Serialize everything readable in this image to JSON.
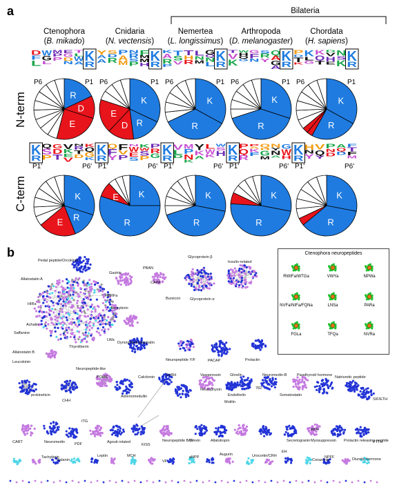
{
  "panel_a": {
    "letter": "a",
    "bilateria_label": "Bilateria",
    "groups": [
      {
        "name": "Ctenophora",
        "species": "B. mikado"
      },
      {
        "name": "Cnidaria",
        "species": "N. vectensis"
      },
      {
        "name": "Nemertea",
        "species": "L. longissimus"
      },
      {
        "name": "Arthropoda",
        "species": "D. melanogaster"
      },
      {
        "name": "Chordata",
        "species": "H. sapiens"
      }
    ],
    "nterm_label": "N-term",
    "cterm_label": "C-term",
    "n_left": "P6",
    "n_right": "P1",
    "c_left": "P1'",
    "c_right": "P6'",
    "colors": {
      "K": "#1f7be0",
      "R": "#1f7be0",
      "D": "#e8141b",
      "E": "#e8141b",
      "other": "#ffffff"
    }
  },
  "chart_data": [
    {
      "type": "pie",
      "title": "Ctenophora N-term",
      "slices": [
        {
          "label": "R",
          "value": 18,
          "color": "#1f7be0"
        },
        {
          "label": "D",
          "value": 12,
          "color": "#e8141b"
        },
        {
          "label": "E",
          "value": 24,
          "color": "#e8141b"
        },
        {
          "label": "",
          "value": 46,
          "color": "#ffffff"
        }
      ]
    },
    {
      "type": "pie",
      "title": "Cnidaria N-term",
      "slices": [
        {
          "label": "K",
          "value": 32,
          "color": "#1f7be0"
        },
        {
          "label": "R",
          "value": 16,
          "color": "#1f7be0"
        },
        {
          "label": "D",
          "value": 14,
          "color": "#e8141b"
        },
        {
          "label": "E",
          "value": 18,
          "color": "#e8141b"
        },
        {
          "label": "",
          "value": 20,
          "color": "#ffffff"
        }
      ]
    },
    {
      "type": "pie",
      "title": "Nemertea N-term",
      "slices": [
        {
          "label": "K",
          "value": 33,
          "color": "#1f7be0"
        },
        {
          "label": "R",
          "value": 35,
          "color": "#1f7be0"
        },
        {
          "label": "",
          "value": 32,
          "color": "#ffffff"
        }
      ]
    },
    {
      "type": "pie",
      "title": "Arthropoda N-term",
      "slices": [
        {
          "label": "K",
          "value": 30,
          "color": "#1f7be0"
        },
        {
          "label": "R",
          "value": 40,
          "color": "#1f7be0"
        },
        {
          "label": "",
          "value": 30,
          "color": "#ffffff"
        }
      ]
    },
    {
      "type": "pie",
      "title": "Chordata N-term",
      "slices": [
        {
          "label": "K",
          "value": 33,
          "color": "#1f7be0"
        },
        {
          "label": "R",
          "value": 25,
          "color": "#1f7be0"
        },
        {
          "label": "D",
          "value": 3,
          "color": "#e8141b"
        },
        {
          "label": "E",
          "value": 3,
          "color": "#e8141b"
        },
        {
          "label": "",
          "value": 36,
          "color": "#ffffff"
        }
      ]
    },
    {
      "type": "pie",
      "title": "Ctenophora C-term",
      "slices": [
        {
          "label": "K",
          "value": 30,
          "color": "#1f7be0"
        },
        {
          "label": "R",
          "value": 14,
          "color": "#1f7be0"
        },
        {
          "label": "E",
          "value": 20,
          "color": "#e8141b"
        },
        {
          "label": "",
          "value": 36,
          "color": "#ffffff"
        }
      ]
    },
    {
      "type": "pie",
      "title": "Cnidaria C-term",
      "slices": [
        {
          "label": "K",
          "value": 25,
          "color": "#1f7be0"
        },
        {
          "label": "R",
          "value": 55,
          "color": "#1f7be0"
        },
        {
          "label": "E",
          "value": 8,
          "color": "#e8141b"
        },
        {
          "label": "",
          "value": 12,
          "color": "#ffffff"
        }
      ]
    },
    {
      "type": "pie",
      "title": "Nemertea C-term",
      "slices": [
        {
          "label": "K",
          "value": 28,
          "color": "#1f7be0"
        },
        {
          "label": "R",
          "value": 42,
          "color": "#1f7be0"
        },
        {
          "label": "",
          "value": 30,
          "color": "#ffffff"
        }
      ]
    },
    {
      "type": "pie",
      "title": "Arthropoda C-term",
      "slices": [
        {
          "label": "K",
          "value": 28,
          "color": "#1f7be0"
        },
        {
          "label": "R",
          "value": 48,
          "color": "#1f7be0"
        },
        {
          "label": "",
          "value": 6,
          "color": "#e8141b"
        },
        {
          "label": "",
          "value": 18,
          "color": "#ffffff"
        }
      ]
    },
    {
      "type": "pie",
      "title": "Chordata C-term",
      "slices": [
        {
          "label": "K",
          "value": 28,
          "color": "#1f7be0"
        },
        {
          "label": "R",
          "value": 36,
          "color": "#1f7be0"
        },
        {
          "label": "",
          "value": 4,
          "color": "#e8141b"
        },
        {
          "label": "",
          "value": 32,
          "color": "#ffffff"
        }
      ]
    }
  ],
  "panel_b": {
    "letter": "b",
    "legend_title": "Ctenophora neuropeptides",
    "legend_items": [
      "RWIFa/WTGa",
      "VWYa",
      "NPWa",
      "NVFa/NIFa/FQNa",
      "LNSa",
      "PARa",
      "FGLa",
      "TFQa",
      "NVRa"
    ],
    "cluster_labels": [
      "Pedal peptide/Orcokinin",
      "Gastrin",
      "PBAN",
      "Allatostatin A",
      "FMRFa",
      "CAPA",
      "HIRa",
      "Achatin",
      "Tachykinin",
      "Saffanine",
      "Allatostatin B",
      "LWa",
      "Leucokinin",
      "Thyroliberin",
      "Neuropeptide-like",
      "Dynorphin/Enkephalin",
      "Glycoprotein β",
      "Insulin-related",
      "Bursicon",
      "Glycoprotein α",
      "Neuropeptide Y/F",
      "PACAP",
      "Prolactin",
      "CHH",
      "POMC",
      "Calcitonin",
      "Adrenomedullin",
      "prokineticin",
      "ITG",
      "GnRH",
      "Vasopressin",
      "Ghrelin",
      "Neuromedin-B",
      "Parathyroid hormone",
      "Natriuretic peptide",
      "Neurophysin",
      "Endothelin",
      "782",
      "Somatostatin",
      "Motilin",
      "AKH",
      "SIF/ETH",
      "CART",
      "Neuromedin",
      "PDF",
      "Agouti related",
      "KISS",
      "Neuropeptide B/W",
      "Orexin",
      "Allatotropin",
      "Secretogranin",
      "Myosuppressin",
      "Prolactin releasing peptide",
      "PTTH",
      "Tachykinin",
      "Galanin",
      "Leptin",
      "MCH",
      "VF",
      "aNPP",
      "Augurin",
      "Urocortin/CRH",
      "EH",
      "Corazonin",
      "NPFF",
      "Diuretic hormone"
    ]
  }
}
